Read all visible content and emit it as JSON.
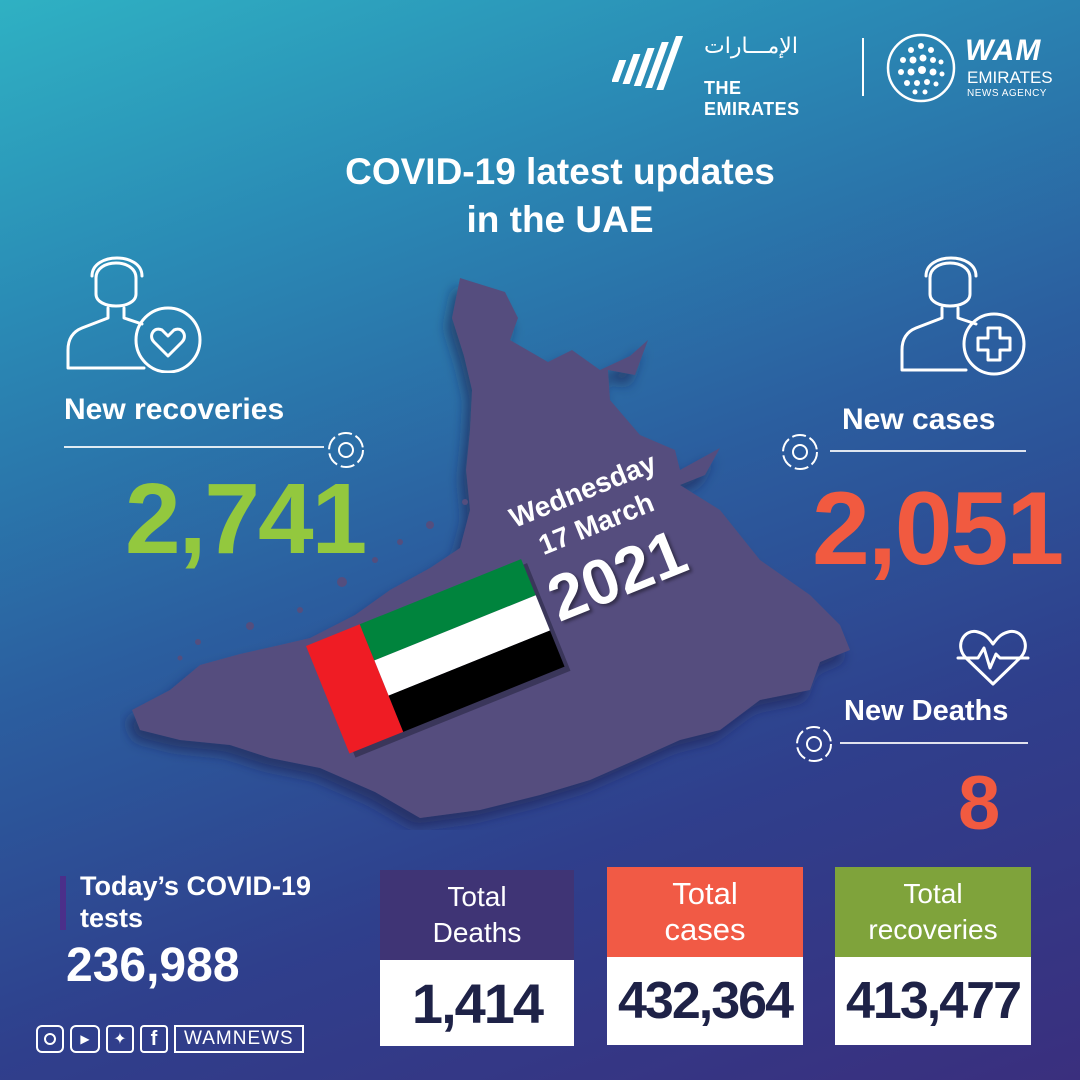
{
  "brand": {
    "emirates_arabic": "الإمـــارات",
    "emirates_latin": "THE EMIRATES",
    "wam": "WAM",
    "wam_line2": "EMIRATES",
    "wam_line3": "NEWS AGENCY"
  },
  "title": {
    "line1": "COVID-19 latest updates",
    "line2": "in the UAE"
  },
  "new_recoveries": {
    "label": "New recoveries",
    "value": "2,741",
    "color": "#93c83e"
  },
  "new_cases": {
    "label": "New cases",
    "value": "2,051",
    "color": "#f15a40"
  },
  "new_deaths": {
    "label": "New Deaths",
    "value": "8",
    "color": "#f15a40"
  },
  "date": {
    "weekday": "Wednesday",
    "day_month": "17 March",
    "year": "2021"
  },
  "tests": {
    "label_line1": "Today’s COVID-19",
    "label_line2": "tests",
    "value": "236,988"
  },
  "totals": [
    {
      "label_line1": "Total",
      "label_line2": "Deaths",
      "value": "1,414",
      "color": "#3f3475"
    },
    {
      "label_line1": "Total",
      "label_line2": "cases",
      "value": "432,364",
      "color": "#f15a45"
    },
    {
      "label_line1": "Total",
      "label_line2": "recoveries",
      "value": "413,477",
      "color": "#7fa33b"
    }
  ],
  "social": {
    "handle": "WAMNEWS",
    "icons": [
      "instagram-icon",
      "youtube-icon",
      "twitter-icon",
      "facebook-icon"
    ]
  },
  "flag": {
    "colors": [
      "#00843d",
      "#ffffff",
      "#000000",
      "#ef1c24"
    ]
  }
}
